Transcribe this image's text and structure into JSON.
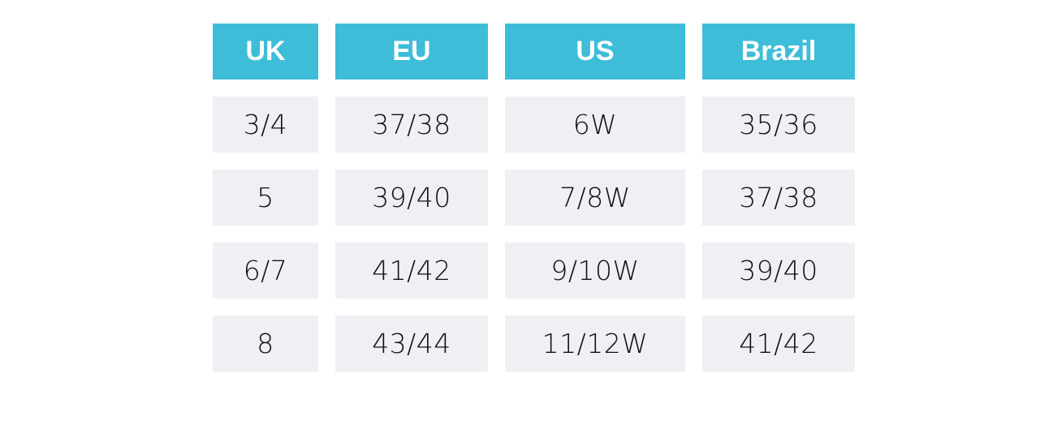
{
  "size_table": {
    "headers": [
      "UK",
      "EU",
      "US",
      "Brazil"
    ],
    "rows": [
      [
        "3/4",
        "37/38",
        "6W",
        "35/36"
      ],
      [
        "5",
        "39/40",
        "7/8W",
        "37/38"
      ],
      [
        "6/7",
        "41/42",
        "9/10W",
        "39/40"
      ],
      [
        "8",
        "43/44",
        "11/12W",
        "41/42"
      ]
    ]
  },
  "colors": {
    "header_bg": "#3dbdd8",
    "header_text": "#ffffff",
    "cell_bg": "#efeff4",
    "cell_text": "#111111"
  }
}
